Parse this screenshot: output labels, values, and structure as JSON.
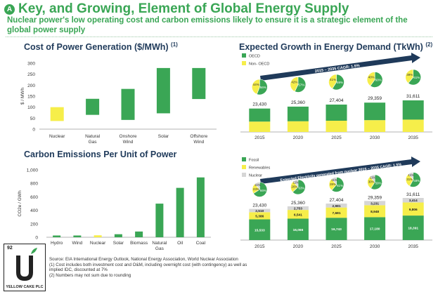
{
  "header": {
    "badge": "A",
    "title": "Key, and Growing, Element of Global Energy Supply",
    "subtitle": "Nuclear power's low operating cost and carbon emissions likely to ensure it is a strategic element of the global power supply"
  },
  "panels": {
    "cost_title": "Cost of Power Generation ($/MWh)",
    "cost_ref": "(1)",
    "carbon_title": "Carbon Emissions Per Unit of Power",
    "growth_title": "Expected Growth in Energy Demand (TkWh)",
    "growth_ref": "(2)"
  },
  "notes": [
    "Source: EIA International Energy Outlook, National Energy Association, World Nuclear Association",
    "(1)    Cost includes both investment cost and O&M, including overnight cost (with contingency) as well as",
    "        implied IDC, discounted at 7%",
    "(2)    Numbers may not sum due to rounding"
  ],
  "logo": {
    "number": "92",
    "name": "YELLOW CAKE PLC"
  },
  "colors": {
    "green": "#3aa655",
    "yellow": "#f6ee4a",
    "grey": "#d6d6d6",
    "navy": "#1f3a5a"
  },
  "chart_data": [
    {
      "id": "cost",
      "type": "bar",
      "ylabel": "$ / MWh",
      "ylim": [
        0,
        300
      ],
      "yticks": [
        "0",
        "50",
        "100",
        "150",
        "200",
        "250",
        "300"
      ],
      "categories": [
        "Nuclear",
        "Natural Gas",
        "Onshore Wind",
        "Solar",
        "Offshore Wind"
      ],
      "category_lines": [
        [
          "Nuclear"
        ],
        [
          "Natural",
          "Gas"
        ],
        [
          "Onshore",
          "Wind"
        ],
        [
          "Solar"
        ],
        [
          "Offshore",
          "Wind"
        ]
      ],
      "ranges": [
        [
          37,
          100
        ],
        [
          65,
          138
        ],
        [
          42,
          183
        ],
        [
          72,
          278
        ],
        [
          137,
          278
        ]
      ],
      "highlight": "Nuclear"
    },
    {
      "id": "carbon",
      "type": "bar",
      "ylabel": "CO2e / GWh",
      "ylim": [
        0,
        1000
      ],
      "yticks": [
        "0",
        "200",
        "400",
        "600",
        "800",
        "1,000"
      ],
      "categories": [
        "Hydro",
        "Wind",
        "Nuclear",
        "Solar",
        "Biomass",
        "Natural Gas",
        "Oil",
        "Coal"
      ],
      "category_lines": [
        [
          "Hydro"
        ],
        [
          "Wind"
        ],
        [
          "Nuclear"
        ],
        [
          "Solar"
        ],
        [
          "Biomass"
        ],
        [
          "Natural",
          "Gas"
        ],
        [
          "Oil"
        ],
        [
          "Coal"
        ]
      ],
      "values": [
        26,
        26,
        29,
        45,
        85,
        499,
        733,
        888
      ],
      "highlight": "Nuclear"
    },
    {
      "id": "demand",
      "type": "bar",
      "categories": [
        "2015",
        "2020",
        "2025",
        "2030",
        "2035"
      ],
      "totals": [
        "23,430",
        "25,360",
        "27,404",
        "29,359",
        "31,611"
      ],
      "values": [
        23430,
        25360,
        27404,
        29359,
        31611
      ],
      "legend": [
        "OECD",
        "Non- OECD"
      ],
      "cagr_label": "2015 – 2035 CAGR: 1.5%",
      "pie_oecd_pct": [
        44,
        42,
        41,
        40,
        39
      ],
      "pie_nonoecd_pct": [
        56,
        57,
        59,
        60,
        61
      ],
      "pie_oecd_labels": [
        "44%",
        "42%",
        "41%",
        "40%",
        "39%"
      ],
      "pie_nonoecd_labels": [
        "56%",
        "57%",
        "59%",
        "60%",
        "61%"
      ]
    },
    {
      "id": "mix",
      "type": "bar",
      "categories": [
        "2015",
        "2020",
        "2025",
        "2030",
        "2035"
      ],
      "legend": [
        "Fossil",
        "Renewables",
        "Nuclear"
      ],
      "cagr_label": "Expected Electricity generated from nuclear 2015 – 2035 CAGR: 1.5%",
      "totals": [
        "23,430",
        "25,360",
        "27,404",
        "29,359",
        "31,611"
      ],
      "series": [
        {
          "name": "Fossil",
          "values": [
            15533,
            16066,
            16743,
            17180,
            18391
          ],
          "labels": [
            "15,533",
            "16,066",
            "16,743",
            "17,180",
            "18,391"
          ]
        },
        {
          "name": "Renewables",
          "values": [
            5386,
            6541,
            7681,
            8948,
            9806
          ],
          "labels": [
            "5,386",
            "6,541",
            "7,681",
            "8,948",
            "9,806"
          ]
        },
        {
          "name": "Nuclear",
          "values": [
            2510,
            2753,
            2981,
            3231,
            3414
          ],
          "labels": [
            "2,510",
            "2,753",
            "2,981",
            "3,231",
            "3,414"
          ]
        }
      ],
      "pies": [
        {
          "labels": [
            "66%",
            "23%",
            "11%"
          ],
          "values": [
            66,
            23,
            11
          ]
        },
        {
          "labels": [
            "63%",
            "26%",
            "11%"
          ],
          "values": [
            63,
            26,
            11
          ]
        },
        {
          "labels": [
            "61%",
            "28%",
            "11%"
          ],
          "values": [
            61,
            28,
            11
          ]
        },
        {
          "labels": [
            "59%",
            "30%",
            "11%"
          ],
          "values": [
            59,
            30,
            11
          ]
        },
        {
          "labels": [
            "58%",
            "31%",
            "11%"
          ],
          "values": [
            58,
            31,
            11
          ]
        }
      ]
    }
  ]
}
